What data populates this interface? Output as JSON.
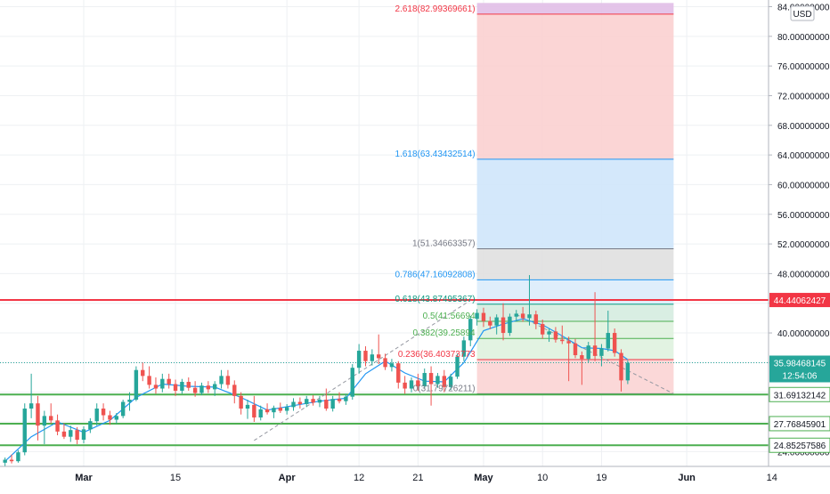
{
  "chart_data": {
    "type": "candlestick",
    "currency_label": "USD",
    "y_ticks": [
      {
        "v": 84,
        "label": "84.00000000"
      },
      {
        "v": 80,
        "label": "80.00000000"
      },
      {
        "v": 76,
        "label": "76.00000000"
      },
      {
        "v": 72,
        "label": "72.00000000"
      },
      {
        "v": 68,
        "label": "68.00000000"
      },
      {
        "v": 64,
        "label": "64.00000000"
      },
      {
        "v": 60,
        "label": "60.00000000"
      },
      {
        "v": 56,
        "label": "56.00000000"
      },
      {
        "v": 52,
        "label": "52.00000000"
      },
      {
        "v": 48,
        "label": "48.00000000"
      },
      {
        "v": 44,
        "label": "44.00000000"
      },
      {
        "v": 40,
        "label": "40.00000000"
      },
      {
        "v": 36,
        "label": "36.00000000"
      },
      {
        "v": 32,
        "label": "32.00000000"
      },
      {
        "v": 28,
        "label": "28.00000000"
      },
      {
        "v": 24,
        "label": "24.00000000"
      }
    ],
    "x_ticks": [
      {
        "date": "2021-03-01",
        "label": "Mar",
        "bold": true
      },
      {
        "date": "2021-03-15",
        "label": "15",
        "bold": false
      },
      {
        "date": "2021-04-01",
        "label": "Apr",
        "bold": true
      },
      {
        "date": "2021-04-12",
        "label": "12",
        "bold": false
      },
      {
        "date": "2021-04-21",
        "label": "21",
        "bold": false
      },
      {
        "date": "2021-05-01",
        "label": "May",
        "bold": true
      },
      {
        "date": "2021-05-10",
        "label": "10",
        "bold": false
      },
      {
        "date": "2021-05-19",
        "label": "19",
        "bold": false
      },
      {
        "date": "2021-06-01",
        "label": "Jun",
        "bold": true
      },
      {
        "date": "2021-06-14",
        "label": "14",
        "bold": false
      }
    ],
    "fibonacci": {
      "start_date": "2021-04-30",
      "end_date": "2021-05-30",
      "levels": [
        {
          "ratio": "2.618",
          "price": 82.99369661,
          "label": "2.618(82.99369661)",
          "color": "#f23645"
        },
        {
          "ratio": "1.618",
          "price": 63.43432514,
          "label": "1.618(63.43432514)",
          "color": "#2196f3"
        },
        {
          "ratio": "1",
          "price": 51.34663357,
          "label": "1(51.34663357)",
          "color": "#787b86"
        },
        {
          "ratio": "0.786",
          "price": 47.16092808,
          "label": "0.786(47.16092808)",
          "color": "#2196f3"
        },
        {
          "ratio": "0.618",
          "price": 43.87495367,
          "label": "0.618(43.87495367)",
          "color": "#089981"
        },
        {
          "ratio": "0.5",
          "price": 41.56694,
          "label": "0.5(41.56694",
          "color": "#4caf50"
        },
        {
          "ratio": "0.382",
          "price": 39.25894,
          "label": "0.382(39.25894",
          "color": "#4caf50"
        },
        {
          "ratio": "0.236",
          "price": 36.40373773,
          "label": "0.236(36.40373773",
          "color": "#f23645"
        },
        {
          "ratio": "0",
          "price": 31.79726211,
          "label": "0(31.79726211)",
          "color": "#787b86"
        }
      ],
      "zones": [
        {
          "from": 82.99369661,
          "to": 84.5,
          "color": "#e1bee7"
        },
        {
          "from": 63.43432514,
          "to": 82.99369661,
          "color": "#fbd0d0"
        },
        {
          "from": 51.34663357,
          "to": 63.43432514,
          "color": "#cfe5fb"
        },
        {
          "from": 47.16092808,
          "to": 51.34663357,
          "color": "#e0e0e0"
        },
        {
          "from": 43.87495367,
          "to": 47.16092808,
          "color": "#dcecfb"
        },
        {
          "from": 41.56694,
          "to": 43.87495367,
          "color": "#d5ece0"
        },
        {
          "from": 36.40373773,
          "to": 41.56694,
          "color": "#dff2df"
        },
        {
          "from": 31.69,
          "to": 36.40373773,
          "color": "#fbd4d4"
        }
      ]
    },
    "horizontal_lines": [
      {
        "price": 44.44062427,
        "label": "44.44062427",
        "color": "#f23645",
        "width": 2
      },
      {
        "price": 31.69132142,
        "label": "31.69132142",
        "color": "#4caf50",
        "width": 2
      },
      {
        "price": 27.76845901,
        "label": "27.76845901",
        "color": "#4caf50",
        "width": 2
      },
      {
        "price": 24.85257586,
        "label": "24.85257586",
        "color": "#4caf50",
        "width": 2
      }
    ],
    "last_price": {
      "price": 35.98468145,
      "label": "35.98468145",
      "countdown": "12:54:06",
      "color": "#26a69a"
    },
    "trend_lines": [
      {
        "from_date": "2021-03-27",
        "from_price": 25.5,
        "to_date": "2021-04-29",
        "to_price": 44.4
      },
      {
        "from_date": "2021-05-06",
        "from_price": 42.5,
        "to_date": "2021-05-30",
        "to_price": 31.8
      }
    ],
    "candles": [
      {
        "d": "2021-02-17",
        "o": 22.5,
        "h": 23.2,
        "l": 22.0,
        "c": 22.9
      },
      {
        "d": "2021-02-18",
        "o": 22.9,
        "h": 23.6,
        "l": 22.4,
        "c": 22.7
      },
      {
        "d": "2021-02-19",
        "o": 22.7,
        "h": 24.2,
        "l": 22.5,
        "c": 23.9
      },
      {
        "d": "2021-02-20",
        "o": 23.9,
        "h": 30.5,
        "l": 23.5,
        "c": 29.8
      },
      {
        "d": "2021-02-21",
        "o": 29.8,
        "h": 34.5,
        "l": 28.5,
        "c": 30.5
      },
      {
        "d": "2021-02-22",
        "o": 30.5,
        "h": 31.5,
        "l": 25.5,
        "c": 27.5
      },
      {
        "d": "2021-02-23",
        "o": 27.5,
        "h": 29.5,
        "l": 25.0,
        "c": 28.8
      },
      {
        "d": "2021-02-24",
        "o": 28.8,
        "h": 30.5,
        "l": 27.8,
        "c": 28.2
      },
      {
        "d": "2021-02-25",
        "o": 28.2,
        "h": 29.0,
        "l": 26.2,
        "c": 26.7
      },
      {
        "d": "2021-02-26",
        "o": 26.7,
        "h": 27.8,
        "l": 25.7,
        "c": 26.0
      },
      {
        "d": "2021-02-27",
        "o": 26.0,
        "h": 27.5,
        "l": 25.3,
        "c": 26.9
      },
      {
        "d": "2021-02-28",
        "o": 26.9,
        "h": 27.3,
        "l": 25.0,
        "c": 25.6
      },
      {
        "d": "2021-03-01",
        "o": 25.6,
        "h": 27.4,
        "l": 25.1,
        "c": 27.0
      },
      {
        "d": "2021-03-02",
        "o": 27.0,
        "h": 28.5,
        "l": 26.5,
        "c": 28.1
      },
      {
        "d": "2021-03-03",
        "o": 28.1,
        "h": 30.5,
        "l": 27.5,
        "c": 29.8
      },
      {
        "d": "2021-03-04",
        "o": 29.8,
        "h": 30.5,
        "l": 28.2,
        "c": 28.9
      },
      {
        "d": "2021-03-05",
        "o": 28.9,
        "h": 29.5,
        "l": 27.6,
        "c": 28.3
      },
      {
        "d": "2021-03-06",
        "o": 28.3,
        "h": 29.2,
        "l": 27.8,
        "c": 28.8
      },
      {
        "d": "2021-03-07",
        "o": 28.8,
        "h": 31.0,
        "l": 28.5,
        "c": 30.7
      },
      {
        "d": "2021-03-08",
        "o": 30.7,
        "h": 32.0,
        "l": 29.5,
        "c": 31.0
      },
      {
        "d": "2021-03-09",
        "o": 31.0,
        "h": 35.5,
        "l": 30.8,
        "c": 35.0
      },
      {
        "d": "2021-03-10",
        "o": 35.0,
        "h": 36.0,
        "l": 33.5,
        "c": 34.2
      },
      {
        "d": "2021-03-11",
        "o": 34.2,
        "h": 35.5,
        "l": 32.5,
        "c": 33.0
      },
      {
        "d": "2021-03-12",
        "o": 33.0,
        "h": 34.0,
        "l": 31.8,
        "c": 32.5
      },
      {
        "d": "2021-03-13",
        "o": 32.5,
        "h": 34.5,
        "l": 32.0,
        "c": 33.8
      },
      {
        "d": "2021-03-14",
        "o": 33.8,
        "h": 34.5,
        "l": 32.5,
        "c": 33.1
      },
      {
        "d": "2021-03-15",
        "o": 33.1,
        "h": 33.7,
        "l": 31.5,
        "c": 32.2
      },
      {
        "d": "2021-03-16",
        "o": 32.2,
        "h": 33.8,
        "l": 31.8,
        "c": 33.4
      },
      {
        "d": "2021-03-17",
        "o": 33.4,
        "h": 34.0,
        "l": 32.2,
        "c": 32.6
      },
      {
        "d": "2021-03-18",
        "o": 32.6,
        "h": 33.5,
        "l": 31.4,
        "c": 31.9
      },
      {
        "d": "2021-03-19",
        "o": 31.9,
        "h": 33.3,
        "l": 31.6,
        "c": 32.9
      },
      {
        "d": "2021-03-20",
        "o": 32.9,
        "h": 33.5,
        "l": 31.9,
        "c": 32.4
      },
      {
        "d": "2021-03-21",
        "o": 32.4,
        "h": 33.5,
        "l": 31.5,
        "c": 33.1
      },
      {
        "d": "2021-03-22",
        "o": 33.1,
        "h": 35.0,
        "l": 32.5,
        "c": 34.2
      },
      {
        "d": "2021-03-23",
        "o": 34.2,
        "h": 35.0,
        "l": 32.5,
        "c": 33.0
      },
      {
        "d": "2021-03-24",
        "o": 33.0,
        "h": 33.6,
        "l": 30.5,
        "c": 31.5
      },
      {
        "d": "2021-03-25",
        "o": 31.5,
        "h": 32.0,
        "l": 29.0,
        "c": 29.8
      },
      {
        "d": "2021-03-26",
        "o": 29.8,
        "h": 31.0,
        "l": 28.4,
        "c": 30.3
      },
      {
        "d": "2021-03-27",
        "o": 30.3,
        "h": 31.5,
        "l": 28.0,
        "c": 28.6
      },
      {
        "d": "2021-03-28",
        "o": 28.6,
        "h": 30.2,
        "l": 28.2,
        "c": 29.7
      },
      {
        "d": "2021-03-29",
        "o": 29.7,
        "h": 30.5,
        "l": 29.0,
        "c": 29.3
      },
      {
        "d": "2021-03-30",
        "o": 29.3,
        "h": 30.2,
        "l": 28.5,
        "c": 29.9
      },
      {
        "d": "2021-03-31",
        "o": 29.9,
        "h": 30.6,
        "l": 29.2,
        "c": 29.5
      },
      {
        "d": "2021-04-01",
        "o": 29.5,
        "h": 30.4,
        "l": 29.0,
        "c": 30.0
      },
      {
        "d": "2021-04-02",
        "o": 30.0,
        "h": 31.2,
        "l": 29.5,
        "c": 30.7
      },
      {
        "d": "2021-04-03",
        "o": 30.7,
        "h": 31.3,
        "l": 29.8,
        "c": 30.4
      },
      {
        "d": "2021-04-04",
        "o": 30.4,
        "h": 31.5,
        "l": 30.0,
        "c": 31.1
      },
      {
        "d": "2021-04-05",
        "o": 31.1,
        "h": 31.6,
        "l": 30.2,
        "c": 30.6
      },
      {
        "d": "2021-04-06",
        "o": 30.6,
        "h": 31.5,
        "l": 30.0,
        "c": 31.0
      },
      {
        "d": "2021-04-07",
        "o": 31.0,
        "h": 32.5,
        "l": 29.5,
        "c": 29.8
      },
      {
        "d": "2021-04-08",
        "o": 29.8,
        "h": 31.5,
        "l": 29.4,
        "c": 31.1
      },
      {
        "d": "2021-04-09",
        "o": 31.1,
        "h": 32.0,
        "l": 30.5,
        "c": 30.8
      },
      {
        "d": "2021-04-10",
        "o": 30.8,
        "h": 31.8,
        "l": 30.3,
        "c": 31.4
      },
      {
        "d": "2021-04-11",
        "o": 31.4,
        "h": 35.8,
        "l": 31.0,
        "c": 35.3
      },
      {
        "d": "2021-04-12",
        "o": 35.3,
        "h": 38.5,
        "l": 34.5,
        "c": 37.6
      },
      {
        "d": "2021-04-13",
        "o": 37.6,
        "h": 38.2,
        "l": 35.5,
        "c": 36.2
      },
      {
        "d": "2021-04-14",
        "o": 36.2,
        "h": 37.8,
        "l": 35.6,
        "c": 37.1
      },
      {
        "d": "2021-04-15",
        "o": 37.1,
        "h": 39.8,
        "l": 35.8,
        "c": 36.6
      },
      {
        "d": "2021-04-16",
        "o": 36.6,
        "h": 37.2,
        "l": 35.0,
        "c": 35.4
      },
      {
        "d": "2021-04-17",
        "o": 35.4,
        "h": 36.5,
        "l": 34.8,
        "c": 35.9
      },
      {
        "d": "2021-04-18",
        "o": 35.9,
        "h": 36.2,
        "l": 32.5,
        "c": 33.3
      },
      {
        "d": "2021-04-19",
        "o": 33.3,
        "h": 34.2,
        "l": 31.8,
        "c": 32.5
      },
      {
        "d": "2021-04-20",
        "o": 32.5,
        "h": 34.0,
        "l": 32.0,
        "c": 33.6
      },
      {
        "d": "2021-04-21",
        "o": 33.6,
        "h": 34.5,
        "l": 32.2,
        "c": 32.8
      },
      {
        "d": "2021-04-22",
        "o": 32.8,
        "h": 35.2,
        "l": 32.5,
        "c": 34.6
      },
      {
        "d": "2021-04-23",
        "o": 34.6,
        "h": 35.5,
        "l": 30.2,
        "c": 33.1
      },
      {
        "d": "2021-04-24",
        "o": 33.1,
        "h": 34.6,
        "l": 32.6,
        "c": 34.2
      },
      {
        "d": "2021-04-25",
        "o": 34.2,
        "h": 35.0,
        "l": 32.0,
        "c": 32.7
      },
      {
        "d": "2021-04-26",
        "o": 32.7,
        "h": 34.5,
        "l": 32.3,
        "c": 34.1
      },
      {
        "d": "2021-04-27",
        "o": 34.1,
        "h": 37.2,
        "l": 33.8,
        "c": 36.8
      },
      {
        "d": "2021-04-28",
        "o": 36.8,
        "h": 39.5,
        "l": 36.2,
        "c": 39.0
      },
      {
        "d": "2021-04-29",
        "o": 39.0,
        "h": 42.3,
        "l": 38.2,
        "c": 41.9
      },
      {
        "d": "2021-04-30",
        "o": 41.9,
        "h": 43.2,
        "l": 41.0,
        "c": 42.7
      },
      {
        "d": "2021-05-01",
        "o": 42.7,
        "h": 43.4,
        "l": 40.8,
        "c": 41.6
      },
      {
        "d": "2021-05-02",
        "o": 41.6,
        "h": 42.2,
        "l": 40.5,
        "c": 41.0
      },
      {
        "d": "2021-05-03",
        "o": 41.0,
        "h": 42.5,
        "l": 39.8,
        "c": 42.1
      },
      {
        "d": "2021-05-04",
        "o": 42.1,
        "h": 44.0,
        "l": 39.0,
        "c": 40.0
      },
      {
        "d": "2021-05-05",
        "o": 40.0,
        "h": 42.6,
        "l": 39.6,
        "c": 42.2
      },
      {
        "d": "2021-05-06",
        "o": 42.2,
        "h": 43.1,
        "l": 41.5,
        "c": 42.6
      },
      {
        "d": "2021-05-07",
        "o": 42.6,
        "h": 43.5,
        "l": 41.5,
        "c": 42.0
      },
      {
        "d": "2021-05-08",
        "o": 42.0,
        "h": 47.8,
        "l": 41.0,
        "c": 42.5
      },
      {
        "d": "2021-05-09",
        "o": 42.5,
        "h": 43.0,
        "l": 40.5,
        "c": 41.2
      },
      {
        "d": "2021-05-10",
        "o": 41.2,
        "h": 41.8,
        "l": 39.2,
        "c": 39.8
      },
      {
        "d": "2021-05-11",
        "o": 39.8,
        "h": 40.6,
        "l": 38.8,
        "c": 40.2
      },
      {
        "d": "2021-05-12",
        "o": 40.2,
        "h": 40.8,
        "l": 38.7,
        "c": 39.1
      },
      {
        "d": "2021-05-13",
        "o": 39.1,
        "h": 41.0,
        "l": 38.5,
        "c": 38.9
      },
      {
        "d": "2021-05-14",
        "o": 38.9,
        "h": 39.5,
        "l": 33.5,
        "c": 38.6
      },
      {
        "d": "2021-05-15",
        "o": 38.6,
        "h": 39.2,
        "l": 36.6,
        "c": 37.0
      },
      {
        "d": "2021-05-16",
        "o": 37.0,
        "h": 37.5,
        "l": 33.0,
        "c": 36.5
      },
      {
        "d": "2021-05-17",
        "o": 36.5,
        "h": 38.8,
        "l": 36.0,
        "c": 38.3
      },
      {
        "d": "2021-05-18",
        "o": 38.3,
        "h": 45.5,
        "l": 36.2,
        "c": 36.9
      },
      {
        "d": "2021-05-19",
        "o": 36.9,
        "h": 38.5,
        "l": 35.5,
        "c": 37.9
      },
      {
        "d": "2021-05-20",
        "o": 37.9,
        "h": 43.0,
        "l": 37.5,
        "c": 40.0
      },
      {
        "d": "2021-05-21",
        "o": 40.0,
        "h": 40.6,
        "l": 36.8,
        "c": 37.3
      },
      {
        "d": "2021-05-22",
        "o": 37.3,
        "h": 37.8,
        "l": 32.1,
        "c": 33.6
      },
      {
        "d": "2021-05-23",
        "o": 33.6,
        "h": 36.3,
        "l": 33.1,
        "c": 35.98
      }
    ],
    "moving_average": [
      {
        "d": "2021-02-17",
        "v": 22.7
      },
      {
        "d": "2021-02-21",
        "v": 26.0
      },
      {
        "d": "2021-02-25",
        "v": 28.0
      },
      {
        "d": "2021-03-01",
        "v": 26.6
      },
      {
        "d": "2021-03-05",
        "v": 28.2
      },
      {
        "d": "2021-03-09",
        "v": 31.3
      },
      {
        "d": "2021-03-13",
        "v": 33.1
      },
      {
        "d": "2021-03-17",
        "v": 32.8
      },
      {
        "d": "2021-03-21",
        "v": 32.7
      },
      {
        "d": "2021-03-25",
        "v": 31.3
      },
      {
        "d": "2021-03-29",
        "v": 29.6
      },
      {
        "d": "2021-04-02",
        "v": 30.2
      },
      {
        "d": "2021-04-06",
        "v": 30.8
      },
      {
        "d": "2021-04-10",
        "v": 31.2
      },
      {
        "d": "2021-04-13",
        "v": 34.5
      },
      {
        "d": "2021-04-16",
        "v": 36.2
      },
      {
        "d": "2021-04-19",
        "v": 34.6
      },
      {
        "d": "2021-04-22",
        "v": 33.5
      },
      {
        "d": "2021-04-25",
        "v": 33.4
      },
      {
        "d": "2021-04-28",
        "v": 36.0
      },
      {
        "d": "2021-05-01",
        "v": 40.3
      },
      {
        "d": "2021-05-04",
        "v": 41.2
      },
      {
        "d": "2021-05-07",
        "v": 41.9
      },
      {
        "d": "2021-05-10",
        "v": 41.1
      },
      {
        "d": "2021-05-13",
        "v": 39.6
      },
      {
        "d": "2021-05-16",
        "v": 38.0
      },
      {
        "d": "2021-05-19",
        "v": 37.9
      },
      {
        "d": "2021-05-21",
        "v": 37.6
      },
      {
        "d": "2021-05-23",
        "v": 36.4
      }
    ]
  }
}
